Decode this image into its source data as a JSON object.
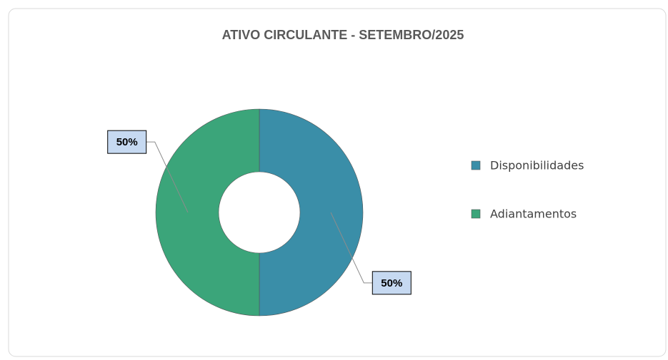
{
  "chart_data": {
    "type": "donut",
    "title": "ATIVO CIRCULANTE  - SETEMBRO/2025",
    "categories": [
      "Disponibilidades",
      "Adiantamentos"
    ],
    "values": [
      50,
      50
    ],
    "value_labels": [
      "50%",
      "50%"
    ],
    "colors": [
      "#3a8ea8",
      "#3ba57a"
    ],
    "legend": "right"
  }
}
